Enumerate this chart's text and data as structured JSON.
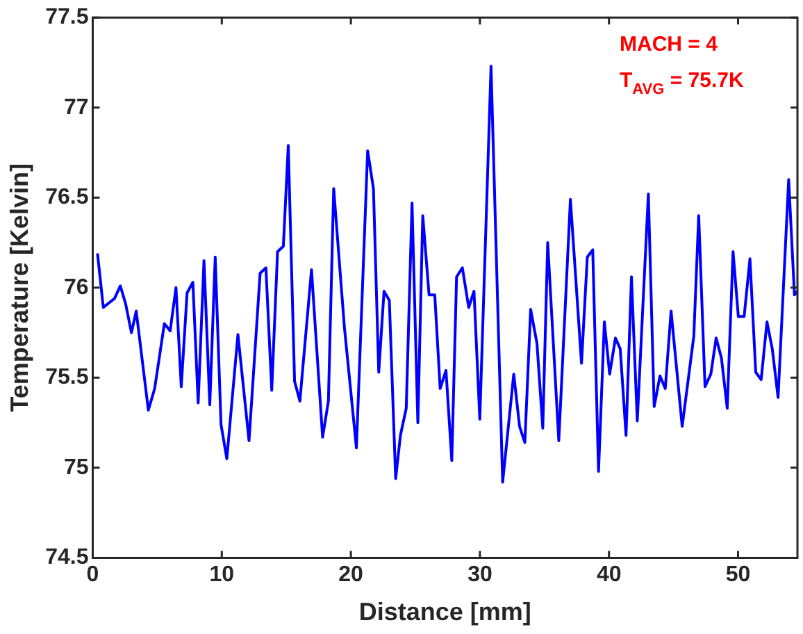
{
  "chart_data": {
    "type": "line",
    "xlabel": "Distance [mm]",
    "ylabel": "Temperature [Kelvin]",
    "annotations": [
      "MACH = 4",
      "T$_{AVG}$ = 75.7K"
    ],
    "xlim": [
      0,
      54.6
    ],
    "xticks": [
      0,
      10,
      20,
      30,
      40,
      50
    ],
    "ylim": [
      74.5,
      77.5
    ],
    "yticks": [
      74.5,
      75,
      75.5,
      76,
      76.5,
      77,
      77.5
    ],
    "grid": false,
    "legend": false,
    "marker": "none",
    "line_style": "solid",
    "series": [
      {
        "color": "#0000ff",
        "x": [
          0.37,
          0.82,
          1.69,
          2.14,
          2.55,
          3.0,
          3.37,
          4.31,
          4.8,
          5.55,
          6.0,
          6.45,
          6.86,
          7.31,
          7.76,
          8.17,
          8.62,
          9.07,
          9.49,
          9.94,
          10.39,
          11.25,
          12.11,
          12.97,
          13.42,
          13.87,
          14.32,
          14.77,
          15.15,
          15.64,
          16.05,
          16.95,
          17.81,
          18.26,
          18.67,
          19.5,
          20.43,
          21.3,
          21.75,
          22.16,
          22.57,
          22.98,
          23.47,
          23.84,
          24.29,
          24.74,
          25.19,
          25.57,
          26.06,
          26.5,
          26.92,
          27.37,
          27.82,
          28.19,
          28.64,
          29.13,
          29.54,
          29.99,
          30.86,
          31.76,
          32.62,
          33.07,
          33.48,
          33.93,
          34.42,
          34.87,
          35.25,
          36.11,
          37.01,
          37.87,
          38.32,
          38.74,
          39.19,
          39.64,
          40.05,
          40.5,
          40.87,
          41.32,
          41.74,
          42.19,
          43.05,
          43.5,
          43.95,
          44.36,
          44.81,
          45.67,
          46.57,
          46.95,
          47.44,
          47.89,
          48.3,
          48.71,
          49.16,
          49.61,
          50.02,
          50.47,
          50.92,
          51.37,
          51.79,
          52.24,
          52.65,
          53.1,
          53.92,
          54.37,
          54.6
        ],
        "values": [
          76.19,
          75.89,
          75.94,
          76.01,
          75.91,
          75.75,
          75.87,
          75.32,
          75.44,
          75.8,
          75.76,
          76.0,
          75.45,
          75.97,
          76.03,
          75.36,
          76.15,
          75.35,
          76.17,
          75.24,
          75.05,
          75.74,
          75.15,
          76.08,
          76.11,
          75.43,
          76.2,
          76.23,
          76.79,
          75.48,
          75.37,
          76.1,
          75.17,
          75.37,
          76.55,
          75.78,
          75.11,
          76.76,
          76.55,
          75.53,
          75.98,
          75.93,
          74.94,
          75.18,
          75.33,
          76.47,
          75.25,
          76.4,
          75.96,
          75.96,
          75.44,
          75.54,
          75.04,
          76.06,
          76.11,
          75.89,
          75.98,
          75.27,
          77.23,
          74.92,
          75.52,
          75.23,
          75.14,
          75.88,
          75.69,
          75.22,
          76.25,
          75.15,
          76.49,
          75.58,
          76.17,
          76.21,
          74.98,
          75.81,
          75.52,
          75.72,
          75.66,
          75.18,
          76.06,
          75.26,
          76.52,
          75.34,
          75.51,
          75.44,
          75.87,
          75.23,
          75.73,
          76.4,
          75.45,
          75.52,
          75.72,
          75.61,
          75.33,
          76.2,
          75.84,
          75.84,
          76.16,
          75.53,
          75.49,
          75.81,
          75.66,
          75.39,
          76.6,
          75.96,
          75.98
        ]
      }
    ]
  }
}
